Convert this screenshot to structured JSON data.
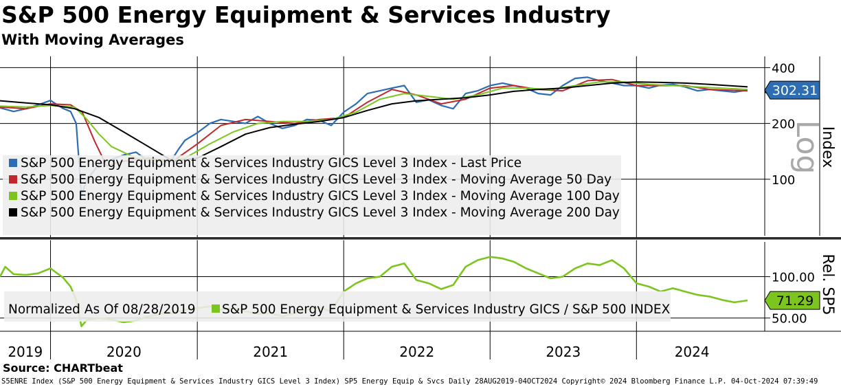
{
  "header": {
    "title": "S&P 500 Energy Equipment & Services Industry",
    "subtitle": "With Moving Averages"
  },
  "source_text": "Source: CHARTbeat",
  "footer_text": "S5ENRE Index (S&P 500 Energy Equipment & Services Industry GICS Level 3 Index) SP5 Energy Equip & Svcs  Daily 28AUG2019-04OCT2024  Copyright© 2024 Bloomberg Finance L.P.  04-Oct-2024 07:39:49",
  "chart_data": [
    {
      "type": "line",
      "panel": "upper",
      "scale": "log",
      "ylabel": "Index",
      "scale_label": "Log",
      "yticks": [
        100,
        200,
        400
      ],
      "ylim": [
        50,
        460
      ],
      "last_value_label": "302.31",
      "x_axis_labels": [
        "2019",
        "2020",
        "2021",
        "2022",
        "2023",
        "2024"
      ],
      "legend_position": "lower-left",
      "series": [
        {
          "name": "S&P 500 Energy Equipment & Services Industry GICS Level 3 Index - Last Price",
          "color": "#2c6db3",
          "x": [
            "2019-08-28",
            "2019-10-01",
            "2019-11-01",
            "2019-12-01",
            "2020-01-01",
            "2020-02-01",
            "2020-02-20",
            "2020-03-05",
            "2020-03-18",
            "2020-04-01",
            "2020-05-01",
            "2020-06-01",
            "2020-07-01",
            "2020-08-01",
            "2020-09-01",
            "2020-10-01",
            "2020-11-01",
            "2020-11-15",
            "2020-12-01",
            "2021-01-01",
            "2021-02-01",
            "2021-03-01",
            "2021-04-01",
            "2021-05-01",
            "2021-06-01",
            "2021-07-01",
            "2021-08-01",
            "2021-09-01",
            "2021-10-01",
            "2021-11-01",
            "2021-12-01",
            "2022-01-01",
            "2022-02-01",
            "2022-03-01",
            "2022-04-01",
            "2022-05-01",
            "2022-06-01",
            "2022-07-01",
            "2022-08-01",
            "2022-09-01",
            "2022-10-01",
            "2022-11-01",
            "2022-12-01",
            "2023-01-01",
            "2023-02-01",
            "2023-03-01",
            "2023-04-01",
            "2023-05-01",
            "2023-06-01",
            "2023-07-01",
            "2023-08-01",
            "2023-09-01",
            "2023-10-01",
            "2023-11-01",
            "2023-12-01",
            "2024-01-01",
            "2024-02-01",
            "2024-03-01",
            "2024-04-01",
            "2024-05-01",
            "2024-06-01",
            "2024-07-01",
            "2024-08-01",
            "2024-09-01",
            "2024-10-04"
          ],
          "values": [
            243,
            232,
            240,
            252,
            266,
            241,
            232,
            200,
            82,
            100,
            120,
            128,
            135,
            140,
            125,
            118,
            130,
            145,
            162,
            178,
            200,
            210,
            205,
            200,
            218,
            200,
            188,
            195,
            210,
            208,
            195,
            230,
            255,
            290,
            300,
            310,
            320,
            260,
            268,
            250,
            240,
            290,
            300,
            320,
            330,
            320,
            310,
            290,
            285,
            320,
            350,
            355,
            340,
            330,
            320,
            320,
            310,
            322,
            325,
            315,
            300,
            305,
            300,
            295,
            302.31
          ]
        },
        {
          "name": "S&P 500 Energy Equipment & Services Industry GICS Level 3 Index - Moving Average 50 Day",
          "color": "#c0272d",
          "x": [
            "2019-08-28",
            "2019-11-01",
            "2020-01-01",
            "2020-02-20",
            "2020-03-20",
            "2020-04-20",
            "2020-05-20",
            "2020-07-01",
            "2020-09-01",
            "2020-11-01",
            "2021-01-01",
            "2021-03-01",
            "2021-05-01",
            "2021-07-01",
            "2021-09-01",
            "2021-11-01",
            "2022-01-01",
            "2022-03-01",
            "2022-05-01",
            "2022-07-01",
            "2022-09-01",
            "2022-11-01",
            "2023-01-01",
            "2023-03-01",
            "2023-05-01",
            "2023-07-01",
            "2023-09-01",
            "2023-11-01",
            "2024-01-01",
            "2024-03-01",
            "2024-05-01",
            "2024-07-01",
            "2024-10-04"
          ],
          "values": [
            245,
            240,
            255,
            252,
            230,
            160,
            118,
            125,
            130,
            125,
            155,
            195,
            210,
            205,
            200,
            210,
            215,
            260,
            305,
            285,
            255,
            270,
            310,
            320,
            305,
            300,
            340,
            345,
            320,
            320,
            320,
            305,
            300
          ]
        },
        {
          "name": "S&P 500 Energy Equipment & Services Industry GICS Level 3 Index - Moving Average 100 Day",
          "color": "#7bc51e",
          "x": [
            "2019-08-28",
            "2019-11-01",
            "2020-01-01",
            "2020-03-01",
            "2020-04-01",
            "2020-05-01",
            "2020-06-01",
            "2020-08-01",
            "2020-10-01",
            "2020-12-01",
            "2021-02-01",
            "2021-04-01",
            "2021-06-01",
            "2021-08-01",
            "2021-10-01",
            "2021-12-01",
            "2022-02-01",
            "2022-04-01",
            "2022-06-01",
            "2022-08-01",
            "2022-10-01",
            "2022-12-01",
            "2023-02-01",
            "2023-04-01",
            "2023-06-01",
            "2023-08-01",
            "2023-10-01",
            "2023-12-01",
            "2024-02-01",
            "2024-04-01",
            "2024-06-01",
            "2024-08-01",
            "2024-10-04"
          ],
          "values": [
            248,
            245,
            250,
            245,
            210,
            175,
            150,
            130,
            125,
            130,
            155,
            180,
            200,
            205,
            205,
            210,
            230,
            270,
            290,
            280,
            270,
            285,
            310,
            310,
            305,
            320,
            335,
            335,
            325,
            320,
            315,
            310,
            305
          ]
        },
        {
          "name": "S&P 500 Energy Equipment & Services Industry GICS Level 3 Index - Moving Average 200 Day",
          "color": "#000000",
          "x": [
            "2019-08-28",
            "2019-11-01",
            "2020-01-01",
            "2020-03-01",
            "2020-05-01",
            "2020-07-01",
            "2020-09-01",
            "2020-11-01",
            "2021-01-01",
            "2021-03-01",
            "2021-05-01",
            "2021-07-01",
            "2021-09-01",
            "2021-11-01",
            "2022-01-01",
            "2022-03-01",
            "2022-05-01",
            "2022-07-01",
            "2022-09-01",
            "2022-11-01",
            "2023-01-01",
            "2023-03-01",
            "2023-05-01",
            "2023-07-01",
            "2023-09-01",
            "2023-11-01",
            "2024-01-01",
            "2024-03-01",
            "2024-05-01",
            "2024-07-01",
            "2024-10-04"
          ],
          "values": [
            265,
            258,
            252,
            240,
            215,
            180,
            150,
            125,
            130,
            150,
            175,
            190,
            198,
            205,
            215,
            235,
            255,
            265,
            270,
            275,
            285,
            298,
            305,
            310,
            320,
            330,
            335,
            333,
            330,
            325,
            315
          ]
        }
      ]
    },
    {
      "type": "line",
      "panel": "lower",
      "ylabel": "Rel. SP5",
      "yticks": [
        50,
        100
      ],
      "ylim": [
        34,
        142
      ],
      "last_value_label": "71.29",
      "legend_position": "lower-left",
      "legend_prefix": "Normalized As Of 08/28/2019",
      "series": [
        {
          "name": "S&P 500 Energy Equipment & Services Industry GICS / S&P 500 INDEX",
          "color": "#7bc51e",
          "x": [
            "2019-08-28",
            "2019-09-10",
            "2019-10-01",
            "2019-11-01",
            "2019-12-01",
            "2020-01-01",
            "2020-02-01",
            "2020-02-20",
            "2020-03-05",
            "2020-03-18",
            "2020-04-01",
            "2020-05-01",
            "2020-06-01",
            "2020-07-01",
            "2020-08-01",
            "2020-09-01",
            "2020-10-01",
            "2020-11-01",
            "2020-12-01",
            "2021-01-01",
            "2021-02-01",
            "2021-03-01",
            "2021-04-01",
            "2021-05-01",
            "2021-06-01",
            "2021-07-01",
            "2021-08-01",
            "2021-09-01",
            "2021-10-01",
            "2021-11-01",
            "2021-12-01",
            "2022-01-01",
            "2022-02-01",
            "2022-03-01",
            "2022-04-01",
            "2022-05-01",
            "2022-06-01",
            "2022-07-01",
            "2022-08-01",
            "2022-09-01",
            "2022-10-01",
            "2022-11-01",
            "2022-12-01",
            "2023-01-01",
            "2023-02-01",
            "2023-03-01",
            "2023-04-01",
            "2023-05-01",
            "2023-06-01",
            "2023-07-01",
            "2023-08-01",
            "2023-09-01",
            "2023-10-01",
            "2023-11-01",
            "2023-12-01",
            "2024-01-01",
            "2024-02-01",
            "2024-03-01",
            "2024-04-01",
            "2024-05-01",
            "2024-06-01",
            "2024-07-01",
            "2024-08-01",
            "2024-09-01",
            "2024-10-04"
          ],
          "values": [
            100,
            112,
            103,
            102,
            104,
            110,
            99,
            88,
            72,
            40,
            48,
            50,
            48,
            45,
            47,
            52,
            55,
            56,
            60,
            62,
            64,
            60,
            62,
            58,
            55,
            56,
            52,
            56,
            60,
            63,
            58,
            82,
            92,
            98,
            100,
            112,
            116,
            96,
            92,
            85,
            90,
            112,
            120,
            124,
            122,
            118,
            110,
            104,
            98,
            100,
            110,
            116,
            114,
            120,
            110,
            92,
            88,
            82,
            86,
            82,
            78,
            76,
            72,
            69,
            71.29
          ]
        }
      ]
    }
  ]
}
